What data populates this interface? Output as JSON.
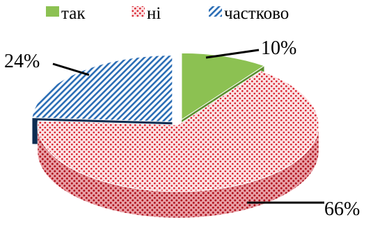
{
  "chart_data": {
    "type": "pie",
    "style": "3d-exploded",
    "legend_position": "top",
    "categories": [
      "так",
      "ні",
      "частково"
    ],
    "values": [
      10,
      66,
      24
    ],
    "labels": [
      "10%",
      "66%",
      "24%"
    ],
    "colors": {
      "так": "#8cc152",
      "ні": "#e02a3a",
      "частково": "#2a6db5"
    },
    "patterns": {
      "так": "solid",
      "ні": "dotted",
      "частково": "diagonal-stripes"
    }
  }
}
